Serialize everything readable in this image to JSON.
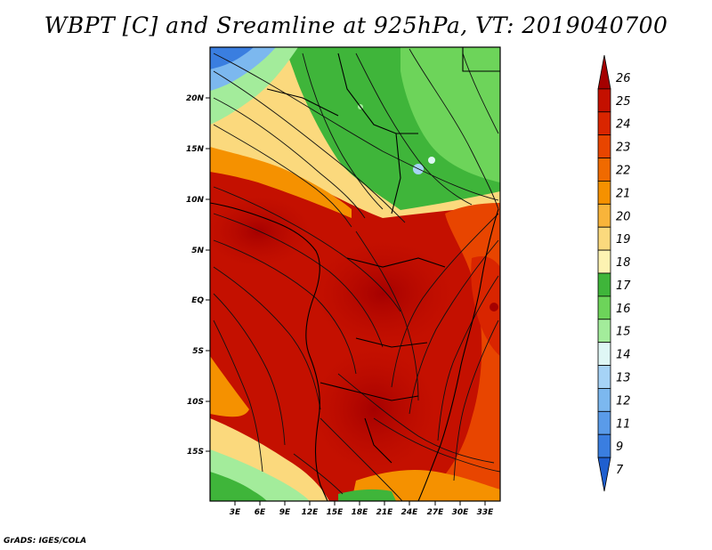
{
  "title": "WBPT [C] and Sreamline at 925hPa, VT: 2019040700",
  "credit": "GrADS: IGES/COLA",
  "map": {
    "lat_labels": [
      "20N",
      "15N",
      "10N",
      "5N",
      "EQ",
      "5S",
      "10S",
      "15S"
    ],
    "lon_labels": [
      "3E",
      "6E",
      "9E",
      "12E",
      "15E",
      "18E",
      "21E",
      "24E",
      "27E",
      "30E",
      "33E"
    ],
    "variable": "wet-bulb potential temperature",
    "level": "925hPa"
  },
  "colorbar": {
    "labels": [
      "26",
      "25",
      "24",
      "23",
      "22",
      "21",
      "20",
      "19",
      "18",
      "17",
      "16",
      "15",
      "14",
      "13",
      "12",
      "11",
      "9",
      "7"
    ],
    "colors": [
      "#a50000",
      "#c41000",
      "#d92500",
      "#e84500",
      "#f06a00",
      "#f59100",
      "#f8b43a",
      "#fbd97d",
      "#fdf3b2",
      "#3fb53a",
      "#6dd45a",
      "#a3ec9b",
      "#dff7f5",
      "#a6d3f6",
      "#7cb8ef",
      "#5a9be9",
      "#3a7ee0",
      "#1f5fcf"
    ]
  }
}
